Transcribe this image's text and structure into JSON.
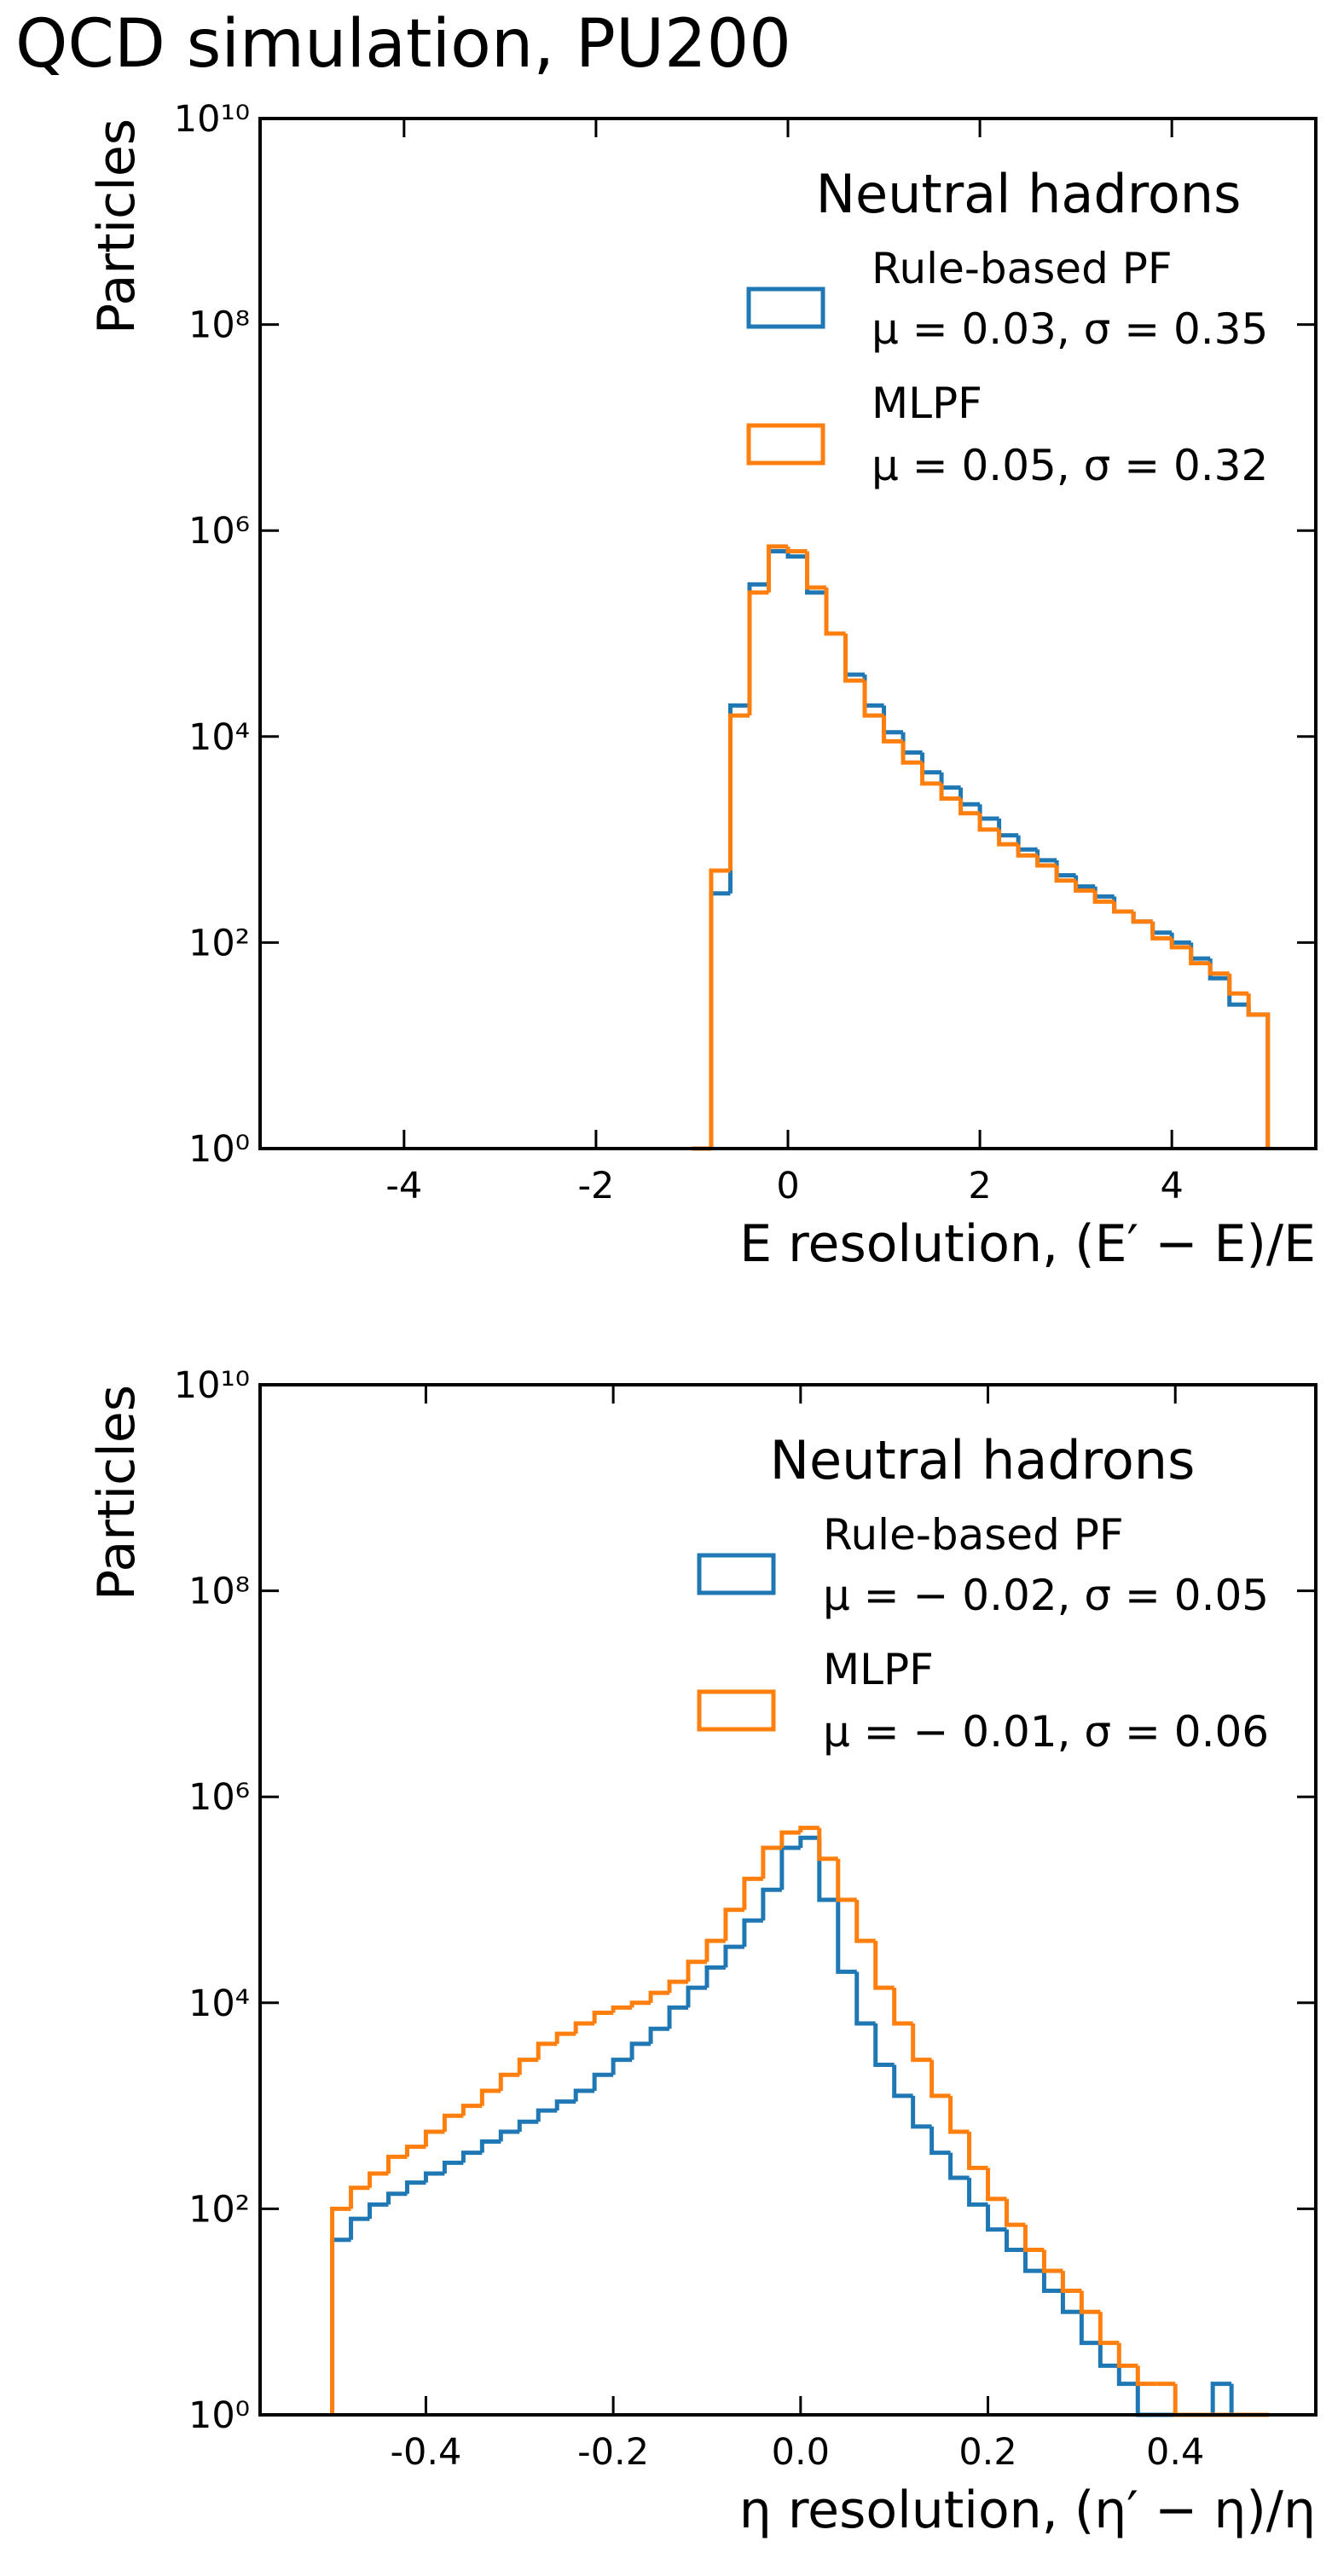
{
  "chart_data": [
    {
      "type": "histogram",
      "title": "QCD simulation, PU200",
      "x_label": "E resolution, (E′ − E)/E",
      "y_label": "Particles",
      "legend_title": "Neutral hadrons",
      "yscale": "log",
      "xlim": [
        -5.5,
        5.5
      ],
      "xticks": [
        -4,
        -2,
        0,
        2,
        4
      ],
      "ylim": [
        1,
        10000000000
      ],
      "yticks": [
        {
          "value": 1,
          "label": "10⁰"
        },
        {
          "value": 100,
          "label": "10²"
        },
        {
          "value": 10000,
          "label": "10⁴"
        },
        {
          "value": 1000000,
          "label": "10⁶"
        },
        {
          "value": 100000000,
          "label": "10⁸"
        },
        {
          "value": 10000000000,
          "label": "10¹⁰"
        }
      ],
      "bins": [
        -1.0,
        -0.8,
        -0.6,
        -0.4,
        -0.2,
        0.0,
        0.2,
        0.4,
        0.6,
        0.8,
        1.0,
        1.2,
        1.4,
        1.6,
        1.8,
        2.0,
        2.2,
        2.4,
        2.6,
        2.8,
        3.0,
        3.2,
        3.4,
        3.6,
        3.8,
        4.0,
        4.2,
        4.4,
        4.6,
        4.8,
        5.0
      ],
      "series": [
        {
          "name": "Rule-based PF",
          "stats": "μ = 0.03,  σ = 0.35",
          "color": "#1f77b4",
          "values": [
            1,
            300,
            20000,
            300000,
            630000,
            560000,
            250000,
            100000,
            40000,
            20000,
            11000,
            7000,
            4500,
            3200,
            2200,
            1600,
            1100,
            800,
            630,
            450,
            350,
            280,
            200,
            160,
            125,
            100,
            70,
            45,
            25,
            20
          ]
        },
        {
          "name": "MLPF",
          "stats": "μ = 0.05,  σ = 0.32",
          "color": "#ff7f0e",
          "values": [
            1,
            500,
            16000,
            250000,
            700000,
            630000,
            280000,
            100000,
            35000,
            16000,
            9000,
            5600,
            3500,
            2500,
            1800,
            1250,
            900,
            700,
            560,
            400,
            320,
            250,
            200,
            160,
            110,
            90,
            63,
            50,
            32,
            20
          ]
        }
      ]
    },
    {
      "type": "histogram",
      "x_label": "η resolution, (η′ − η)/η",
      "y_label": "Particles",
      "legend_title": "Neutral hadrons",
      "yscale": "log",
      "xlim": [
        -0.577,
        0.55
      ],
      "xticks": [
        -0.4,
        -0.2,
        {
          "value": 0,
          "label": "0.0"
        },
        0.2,
        0.4
      ],
      "ylim": [
        1,
        10000000000
      ],
      "yticks": [
        {
          "value": 1,
          "label": "10⁰"
        },
        {
          "value": 100,
          "label": "10²"
        },
        {
          "value": 10000,
          "label": "10⁴"
        },
        {
          "value": 1000000,
          "label": "10⁶"
        },
        {
          "value": 100000000,
          "label": "10⁸"
        },
        {
          "value": 10000000000,
          "label": "10¹⁰"
        }
      ],
      "bins": [
        -0.5,
        -0.48,
        -0.46,
        -0.44,
        -0.42,
        -0.4,
        -0.38,
        -0.36,
        -0.34,
        -0.32,
        -0.3,
        -0.28,
        -0.26,
        -0.24,
        -0.22,
        -0.2,
        -0.18,
        -0.16,
        -0.14,
        -0.12,
        -0.1,
        -0.08,
        -0.06,
        -0.04,
        -0.02,
        0.0,
        0.02,
        0.04,
        0.06,
        0.08,
        0.1,
        0.12,
        0.14,
        0.16,
        0.18,
        0.2,
        0.22,
        0.24,
        0.26,
        0.28,
        0.3,
        0.32,
        0.34,
        0.36,
        0.38,
        0.4,
        0.42,
        0.44,
        0.46,
        0.48,
        0.5
      ],
      "series": [
        {
          "name": "Rule-based PF",
          "stats": "μ = − 0.02,  σ = 0.05",
          "color": "#1f77b4",
          "values": [
            50,
            80,
            110,
            140,
            180,
            220,
            280,
            350,
            450,
            560,
            700,
            900,
            1100,
            1400,
            2000,
            2800,
            4000,
            5600,
            9000,
            14000,
            22000,
            35000,
            63000,
            125000,
            320000,
            400000,
            100000,
            20000,
            6300,
            2500,
            1250,
            630,
            350,
            200,
            110,
            63,
            40,
            25,
            16,
            10,
            5,
            3,
            2,
            1,
            1,
            1,
            1,
            2,
            1,
            1
          ]
        },
        {
          "name": "MLPF",
          "stats": "μ = − 0.01,  σ = 0.06",
          "color": "#ff7f0e",
          "values": [
            100,
            160,
            220,
            320,
            400,
            560,
            800,
            1000,
            1400,
            2000,
            2800,
            4000,
            5000,
            6300,
            8000,
            9000,
            10000,
            12500,
            16000,
            25000,
            40000,
            80000,
            160000,
            320000,
            450000,
            500000,
            250000,
            100000,
            40000,
            14000,
            6300,
            2800,
            1250,
            560,
            250,
            125,
            70,
            40,
            25,
            16,
            10,
            5,
            3,
            2,
            2,
            1,
            1,
            1,
            1,
            1
          ]
        }
      ]
    }
  ]
}
